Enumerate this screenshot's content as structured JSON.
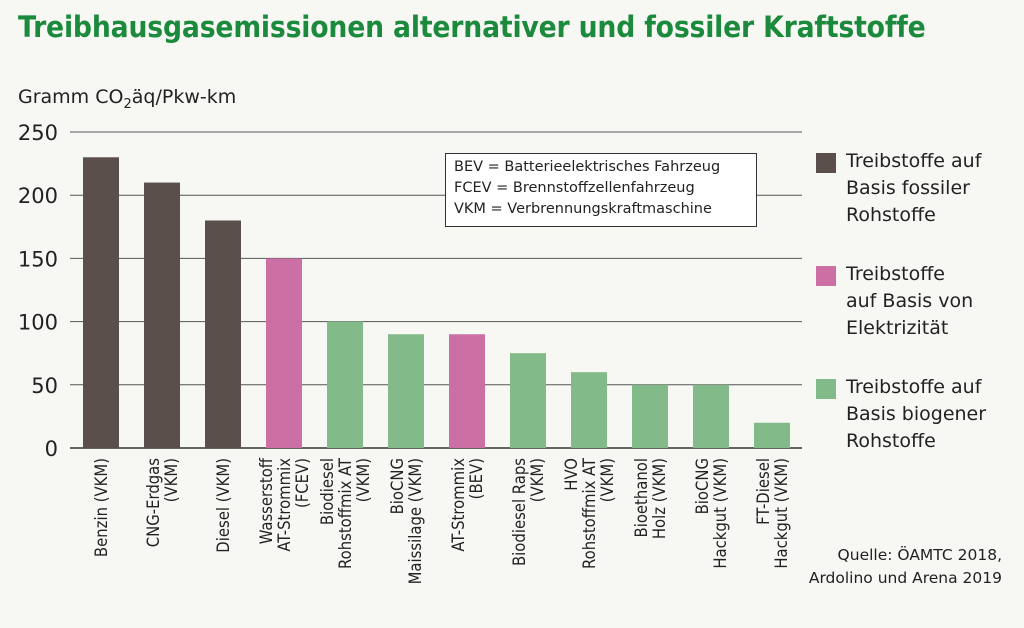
{
  "title": "Treibhausgasemissionen alternativer und fossiler Kraftstoffe",
  "abbreviations": [
    "BEV = Batterieelektrisches Fahrzeug",
    "FCEV = Brennstoffzellenfahrzeug",
    "VKM = Verbrennungskraftmaschine"
  ],
  "legend": [
    {
      "label": "Treibstoffe auf\nBasis fossiler\nRohstoffe",
      "color": "#5b4f4b"
    },
    {
      "label": "Treibstoffe\nauf Basis von\nElektrizität",
      "color": "#cc6fa5"
    },
    {
      "label": "Treibstoffe auf\nBasis biogener\nRohstoffe",
      "color": "#82bb89"
    }
  ],
  "source": "Quelle: ÖAMTC 2018,\nArdolino und Arena 2019",
  "chart_data": {
    "type": "bar",
    "ylabel_main": "Gramm CO",
    "ylabel_sub": "2",
    "ylabel_rest": "äq/Pkw-km",
    "ylim": [
      0,
      250
    ],
    "yticks": [
      0,
      50,
      100,
      150,
      200,
      250
    ],
    "grid": true,
    "categories": [
      [
        "Benzin (VKM)"
      ],
      [
        "CNG-Erdgas",
        "(VKM)"
      ],
      [
        "Diesel (VKM)"
      ],
      [
        "Wasserstoff",
        "AT-Strommix",
        "(FCEV)"
      ],
      [
        "Biodiesel",
        "Rohstoffmix AT",
        "(VKM)"
      ],
      [
        "BioCNG",
        "Maissilage (VKM)"
      ],
      [
        "AT-Strommix",
        "(BEV)"
      ],
      [
        "Biodiesel Raps",
        "(VKM)"
      ],
      [
        "HVO",
        "Rohstoffmix AT",
        "(VKM)"
      ],
      [
        "Bioethanol",
        "Holz (VKM)"
      ],
      [
        "BioCNG",
        "Hackgut (VKM)"
      ],
      [
        "FT-Diesel",
        "Hackgut (VKM)"
      ]
    ],
    "values": [
      230,
      210,
      180,
      150,
      100,
      90,
      90,
      75,
      60,
      50,
      50,
      20
    ],
    "groups": [
      0,
      0,
      0,
      1,
      2,
      2,
      1,
      2,
      2,
      2,
      2,
      2
    ]
  }
}
